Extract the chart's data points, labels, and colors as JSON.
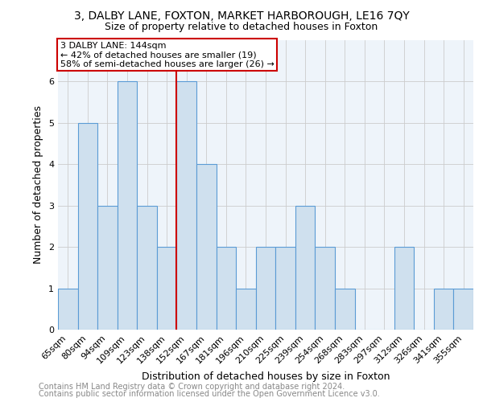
{
  "title": "3, DALBY LANE, FOXTON, MARKET HARBOROUGH, LE16 7QY",
  "subtitle": "Size of property relative to detached houses in Foxton",
  "xlabel": "Distribution of detached houses by size in Foxton",
  "ylabel": "Number of detached properties",
  "categories": [
    "65sqm",
    "80sqm",
    "94sqm",
    "109sqm",
    "123sqm",
    "138sqm",
    "152sqm",
    "167sqm",
    "181sqm",
    "196sqm",
    "210sqm",
    "225sqm",
    "239sqm",
    "254sqm",
    "268sqm",
    "283sqm",
    "297sqm",
    "312sqm",
    "326sqm",
    "341sqm",
    "355sqm"
  ],
  "values": [
    1,
    5,
    3,
    6,
    3,
    2,
    6,
    4,
    2,
    1,
    2,
    2,
    3,
    2,
    1,
    0,
    0,
    2,
    0,
    1,
    1
  ],
  "bar_color": "#cfe0ee",
  "bar_edge_color": "#5b9bd5",
  "red_line_x": 5.5,
  "annotation_line1": "3 DALBY LANE: 144sqm",
  "annotation_line2": "← 42% of detached houses are smaller (19)",
  "annotation_line3": "58% of semi-detached houses are larger (26) →",
  "annotation_box_color": "#ffffff",
  "annotation_box_edge": "#cc0000",
  "red_line_color": "#cc0000",
  "ylim": [
    0,
    7
  ],
  "yticks": [
    0,
    1,
    2,
    3,
    4,
    5,
    6
  ],
  "footer_line1": "Contains HM Land Registry data © Crown copyright and database right 2024.",
  "footer_line2": "Contains public sector information licensed under the Open Government Licence v3.0.",
  "title_fontsize": 10,
  "subtitle_fontsize": 9,
  "axis_label_fontsize": 9,
  "tick_fontsize": 8,
  "footer_fontsize": 7,
  "annotation_fontsize": 8
}
